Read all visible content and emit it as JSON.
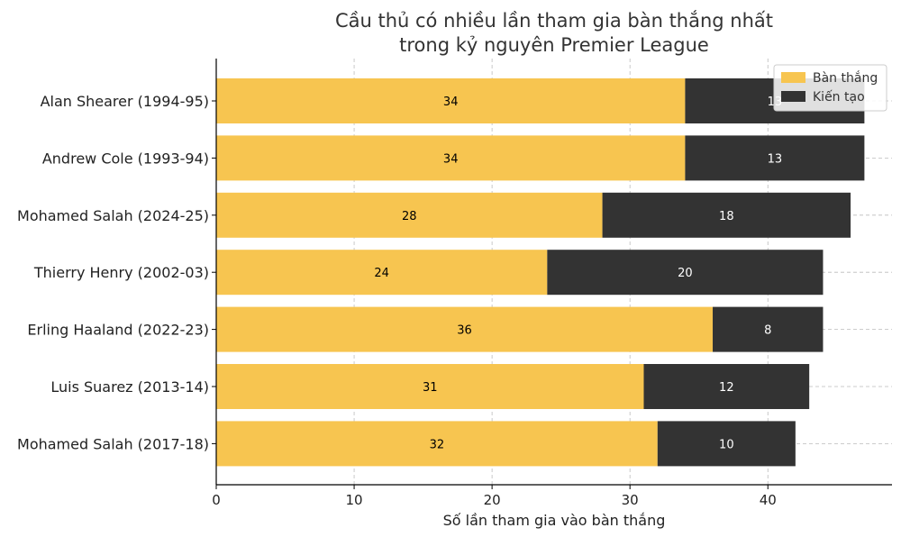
{
  "chart_data": {
    "type": "bar",
    "orientation": "horizontal",
    "stacked": true,
    "title": [
      "Cầu thủ có nhiều lần tham gia bàn thắng nhất",
      "trong kỷ nguyên Premier League"
    ],
    "xlabel": "Số lần tham gia vào bàn thắng",
    "ylabel": "",
    "xlim": [
      0,
      49
    ],
    "xticks": [
      0,
      10,
      20,
      30,
      40
    ],
    "grid": true,
    "legend_position": "top-right",
    "categories": [
      "Alan Shearer (1994-95)",
      "Andrew Cole (1993-94)",
      "Mohamed Salah (2024-25)",
      "Thierry Henry (2002-03)",
      "Erling Haaland (2022-23)",
      "Luis Suarez (2013-14)",
      "Mohamed Salah (2017-18)"
    ],
    "series": [
      {
        "name": "Bàn thắng",
        "color": "#f7c550",
        "label_color": "#000000",
        "values": [
          34,
          34,
          28,
          24,
          36,
          31,
          32
        ]
      },
      {
        "name": "Kiến tạo",
        "color": "#333333",
        "label_color": "#ffffff",
        "values": [
          13,
          13,
          18,
          20,
          8,
          12,
          10
        ]
      }
    ]
  }
}
